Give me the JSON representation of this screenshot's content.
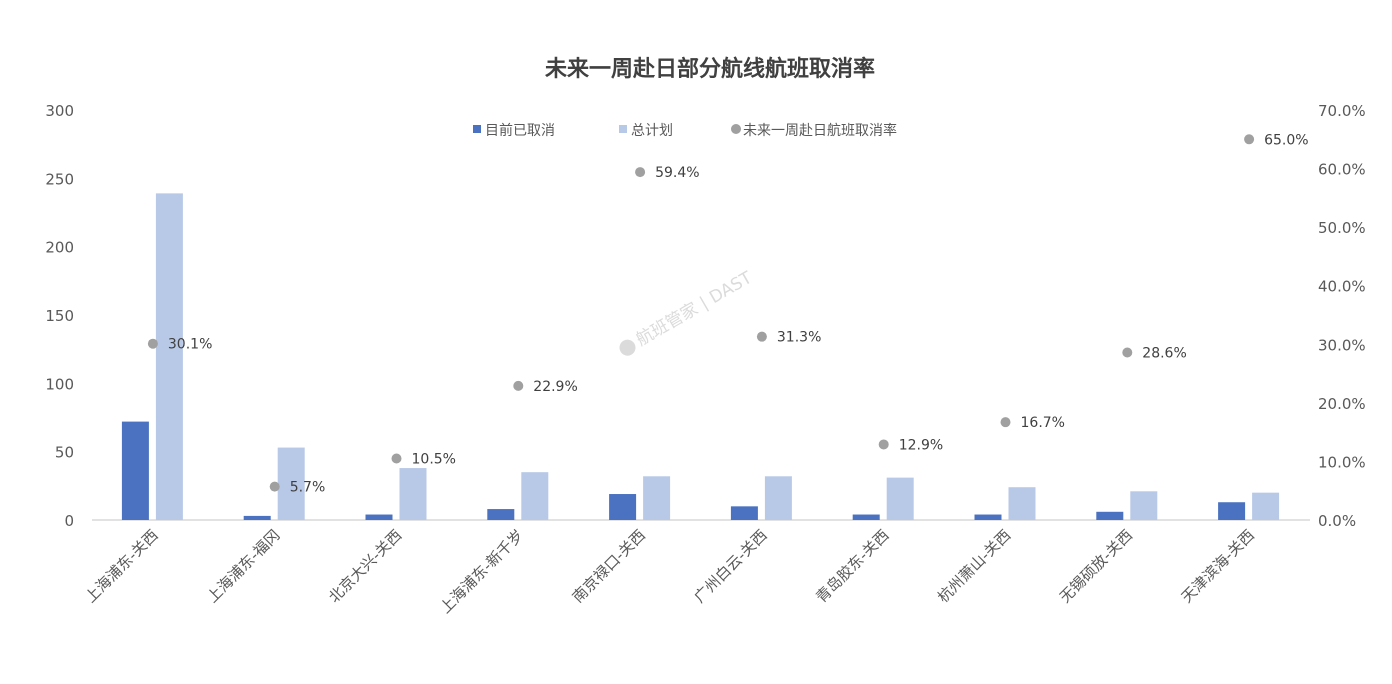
{
  "chart_data": {
    "type": "bar",
    "title": "未来一周赴日部分航线航班取消率",
    "categories": [
      "上海浦东-关西",
      "上海浦东-福冈",
      "北京大兴-关西",
      "上海浦东-新千岁",
      "南京禄口-关西",
      "广州白云-关西",
      "青岛胶东-关西",
      "杭州萧山-关西",
      "无锡硕放-关西",
      "天津滨海-关西"
    ],
    "series": [
      {
        "name": "目前已取消",
        "type": "bar",
        "axis": "left",
        "color": "#4a72c0",
        "values": [
          72,
          3,
          4,
          8,
          19,
          10,
          4,
          4,
          6,
          13
        ]
      },
      {
        "name": "总计划",
        "type": "bar",
        "axis": "left",
        "color": "#b8c9e7",
        "values": [
          239,
          53,
          38,
          35,
          32,
          32,
          31,
          24,
          21,
          20
        ]
      },
      {
        "name": "未来一周赴日航班取消率",
        "type": "scatter",
        "axis": "right",
        "color": "#a0a0a0",
        "values": [
          30.1,
          5.7,
          10.5,
          22.9,
          59.4,
          31.3,
          12.9,
          16.7,
          28.6,
          65.0
        ],
        "labels": [
          "30.1%",
          "5.7%",
          "10.5%",
          "22.9%",
          "59.4%",
          "31.3%",
          "12.9%",
          "16.7%",
          "28.6%",
          "65.0%"
        ]
      }
    ],
    "ylim": [
      0,
      300
    ],
    "yticks": [
      "0",
      "50",
      "100",
      "150",
      "200",
      "250",
      "300"
    ],
    "y2lim": [
      0,
      70
    ],
    "y2ticks": [
      "0.0%",
      "10.0%",
      "20.0%",
      "30.0%",
      "40.0%",
      "50.0%",
      "60.0%",
      "70.0%"
    ],
    "grid": false,
    "legend": "top-center"
  },
  "watermark": "航班管家 | DAST"
}
